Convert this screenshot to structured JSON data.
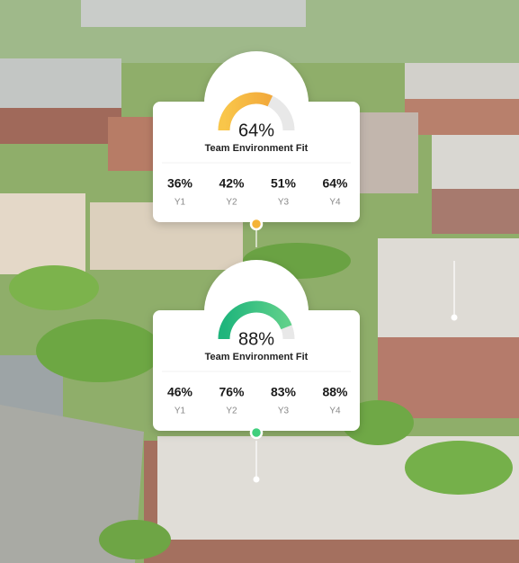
{
  "cards": [
    {
      "score": 64,
      "score_label": "64%",
      "title": "Team Environment Fit",
      "years": [
        {
          "value": "36%",
          "label": "Y1"
        },
        {
          "value": "42%",
          "label": "Y2"
        },
        {
          "value": "51%",
          "label": "Y3"
        },
        {
          "value": "64%",
          "label": "Y4"
        }
      ]
    },
    {
      "score": 88,
      "score_label": "88%",
      "title": "Team Environment Fit",
      "years": [
        {
          "value": "46%",
          "label": "Y1"
        },
        {
          "value": "76%",
          "label": "Y2"
        },
        {
          "value": "83%",
          "label": "Y3"
        },
        {
          "value": "88%",
          "label": "Y4"
        }
      ]
    }
  ]
}
